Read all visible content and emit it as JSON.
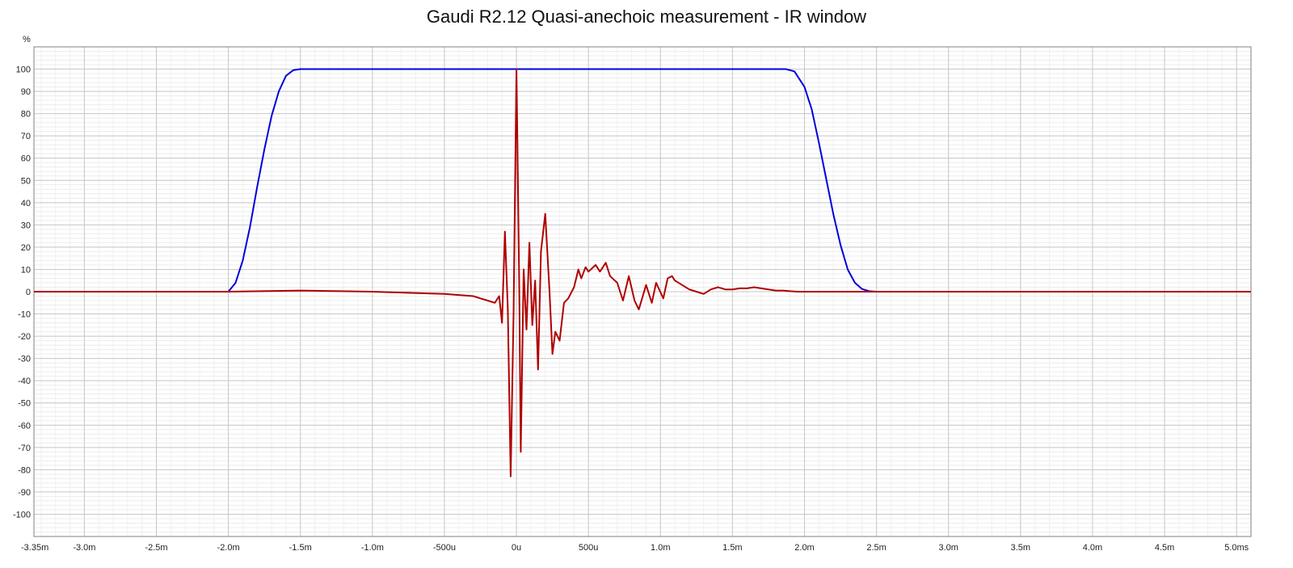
{
  "chart_data": {
    "type": "line",
    "title": "Gaudi R2.12 Quasi-anechoic measurement - IR window",
    "xlabel": "",
    "ylabel": "%",
    "xlim": [
      -3.35,
      5.1
    ],
    "ylim": [
      -110,
      110
    ],
    "grid": true,
    "legend": "none",
    "x_unit": "ms",
    "y_ticks": [
      100,
      90,
      80,
      70,
      60,
      50,
      40,
      30,
      20,
      10,
      0,
      -10,
      -20,
      -30,
      -40,
      -50,
      -60,
      -70,
      -80,
      -90,
      -100
    ],
    "y_tick_labels": [
      "100",
      "90",
      "80",
      "70",
      "60",
      "50",
      "40",
      "30",
      "20",
      "10",
      "0",
      "-10",
      "-20",
      "-30",
      "-40",
      "-50",
      "-60",
      "-70",
      "-80",
      "-90",
      "-100"
    ],
    "x_ticks": [
      -3.35,
      -3.0,
      -2.5,
      -2.0,
      -1.5,
      -1.0,
      -0.5,
      0,
      0.5,
      1.0,
      1.5,
      2.0,
      2.5,
      3.0,
      3.5,
      4.0,
      4.5,
      5.0
    ],
    "x_tick_labels": [
      "-3.35m",
      "-3.0m",
      "-2.5m",
      "-2.0m",
      "-1.5m",
      "-1.0m",
      "-500u",
      "0u",
      "500u",
      "1.0m",
      "1.5m",
      "2.0m",
      "2.5m",
      "3.0m",
      "3.5m",
      "4.0m",
      "4.5m",
      "5.0ms"
    ],
    "series": [
      {
        "color": "#0000dd",
        "x": [
          -3.35,
          -2.0,
          -1.95,
          -1.9,
          -1.85,
          -1.8,
          -1.75,
          -1.7,
          -1.65,
          -1.6,
          -1.55,
          -1.5,
          1.87,
          1.93,
          2.0,
          2.05,
          2.1,
          2.15,
          2.2,
          2.25,
          2.3,
          2.35,
          2.4,
          2.45,
          2.5,
          5.1
        ],
        "y": [
          0,
          0,
          4,
          14,
          29,
          47,
          64,
          79,
          90,
          97,
          99.5,
          100,
          100,
          99,
          92,
          82,
          67,
          51,
          35,
          21,
          10,
          4,
          1.2,
          0.2,
          0,
          0
        ]
      },
      {
        "color": "#b00000",
        "x": [
          -3.35,
          -2.0,
          -1.5,
          -1.0,
          -0.5,
          -0.3,
          -0.25,
          -0.2,
          -0.15,
          -0.12,
          -0.1,
          -0.08,
          -0.06,
          -0.04,
          -0.02,
          0.0,
          0.02,
          0.03,
          0.05,
          0.07,
          0.09,
          0.11,
          0.13,
          0.15,
          0.17,
          0.2,
          0.23,
          0.25,
          0.27,
          0.3,
          0.33,
          0.36,
          0.4,
          0.43,
          0.45,
          0.48,
          0.5,
          0.55,
          0.58,
          0.62,
          0.65,
          0.7,
          0.74,
          0.78,
          0.82,
          0.85,
          0.9,
          0.94,
          0.97,
          1.02,
          1.05,
          1.08,
          1.1,
          1.15,
          1.2,
          1.25,
          1.3,
          1.35,
          1.4,
          1.45,
          1.5,
          1.55,
          1.6,
          1.65,
          1.7,
          1.75,
          1.8,
          1.85,
          1.9,
          1.95,
          2.0,
          2.1,
          2.2,
          2.3,
          2.5,
          3.0,
          3.5,
          4.0,
          5.1
        ],
        "y": [
          0,
          0,
          0.5,
          0,
          -1,
          -2,
          -3,
          -4,
          -5,
          -2,
          -14,
          27,
          -8,
          -83,
          -10,
          100,
          0,
          -72,
          10,
          -17,
          22,
          -15,
          5,
          -35,
          18,
          35,
          0,
          -28,
          -18,
          -22,
          -5,
          -3,
          2,
          10,
          6,
          11,
          9,
          12,
          9,
          13,
          7,
          4,
          -4,
          7,
          -4,
          -8,
          3,
          -5,
          4,
          -3,
          6,
          7,
          5,
          3,
          1,
          0,
          -1,
          1,
          2,
          1,
          1,
          1.5,
          1.5,
          2,
          1.5,
          1,
          0.5,
          0.5,
          0.2,
          0,
          0,
          0,
          0,
          0,
          0,
          0,
          0,
          0,
          0
        ]
      }
    ]
  }
}
